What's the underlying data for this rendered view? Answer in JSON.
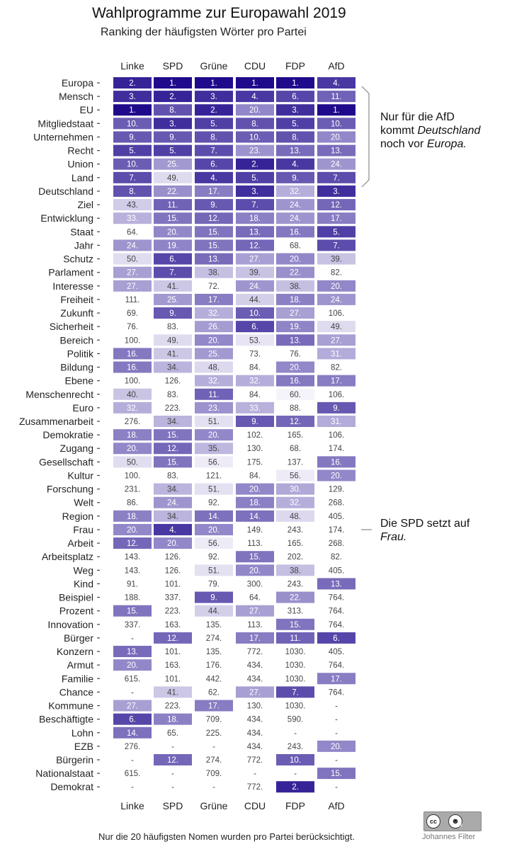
{
  "title": "Wahlprogramme zur Europawahl 2019",
  "subtitle": "Ranking der häufigsten Wörter pro Partei",
  "caption": "Nur die 20 häufigsten Nomen wurden pro Partei berücksichtigt.",
  "author": "Johannes Filter",
  "license": {
    "cc": "cc",
    "by": "BY"
  },
  "annotations": {
    "afd": {
      "line1": "Nur für die AfD",
      "line2_a": "kommt ",
      "line2_b": "Deutschland",
      "line3_a": "noch vor ",
      "line3_b": "Europa."
    },
    "spd": {
      "line1": "Die SPD setzt auf",
      "line2": "Frau."
    }
  },
  "colors": {
    "best": "#1f0a8c",
    "worst": "#f6f4fb",
    "text_light": "#ffffff",
    "text_dark": "#333333"
  },
  "chart_data": {
    "type": "heatmap",
    "title": "Wahlprogramme zur Europawahl 2019",
    "subtitle": "Ranking der häufigsten Wörter pro Partei",
    "x": [
      "Linke",
      "SPD",
      "Grüne",
      "CDU",
      "FDP",
      "AfD"
    ],
    "y": [
      "Europa",
      "Mensch",
      "EU",
      "Mitgliedstaat",
      "Unternehmen",
      "Recht",
      "Union",
      "Land",
      "Deutschland",
      "Ziel",
      "Entwicklung",
      "Staat",
      "Jahr",
      "Schutz",
      "Parlament",
      "Interesse",
      "Freiheit",
      "Zukunft",
      "Sicherheit",
      "Bereich",
      "Politik",
      "Bildung",
      "Ebene",
      "Menschenrecht",
      "Euro",
      "Zusammenarbeit",
      "Demokratie",
      "Zugang",
      "Gesellschaft",
      "Kultur",
      "Forschung",
      "Welt",
      "Region",
      "Frau",
      "Arbeit",
      "Arbeitsplatz",
      "Weg",
      "Kind",
      "Beispiel",
      "Prozent",
      "Innovation",
      "Bürger",
      "Konzern",
      "Armut",
      "Familie",
      "Chance",
      "Kommune",
      "Beschäftigte",
      "Lohn",
      "EZB",
      "Bürgerin",
      "Nationalstaat",
      "Demokrat"
    ],
    "values": [
      [
        2,
        1,
        1,
        1,
        1,
        4
      ],
      [
        3,
        2,
        3,
        4,
        6,
        11
      ],
      [
        1,
        8,
        2,
        20,
        3,
        1
      ],
      [
        10,
        3,
        5,
        8,
        5,
        10
      ],
      [
        9,
        9,
        8,
        10,
        8,
        20
      ],
      [
        5,
        5,
        7,
        23,
        13,
        13
      ],
      [
        10,
        25,
        6,
        2,
        4,
        24
      ],
      [
        7,
        49,
        4,
        5,
        9,
        7
      ],
      [
        8,
        22,
        17,
        3,
        32,
        3
      ],
      [
        43,
        11,
        9,
        7,
        24,
        12
      ],
      [
        33,
        15,
        12,
        18,
        24,
        17
      ],
      [
        64,
        20,
        15,
        13,
        16,
        5
      ],
      [
        24,
        19,
        15,
        12,
        68,
        7
      ],
      [
        50,
        6,
        13,
        27,
        20,
        39
      ],
      [
        27,
        7,
        38,
        39,
        22,
        82
      ],
      [
        27,
        41,
        72,
        24,
        38,
        20
      ],
      [
        111,
        25,
        17,
        44,
        18,
        24
      ],
      [
        69,
        9,
        32,
        10,
        27,
        106
      ],
      [
        76,
        83,
        26,
        6,
        19,
        49
      ],
      [
        100,
        49,
        20,
        53,
        13,
        27
      ],
      [
        16,
        41,
        25,
        73,
        76,
        31
      ],
      [
        16,
        34,
        48,
        84,
        20,
        82
      ],
      [
        100,
        126,
        32,
        32,
        16,
        17
      ],
      [
        40,
        83,
        11,
        84,
        60,
        106
      ],
      [
        32,
        223,
        23,
        33,
        88,
        9
      ],
      [
        276,
        34,
        51,
        9,
        12,
        31
      ],
      [
        18,
        15,
        20,
        102,
        165,
        106
      ],
      [
        20,
        12,
        35,
        130,
        68,
        174
      ],
      [
        50,
        15,
        56,
        175,
        137,
        16
      ],
      [
        100,
        83,
        121,
        84,
        56,
        20
      ],
      [
        231,
        34,
        51,
        20,
        30,
        129
      ],
      [
        86,
        24,
        92,
        18,
        32,
        268
      ],
      [
        18,
        34,
        14,
        14,
        48,
        405
      ],
      [
        20,
        4,
        20,
        149,
        243,
        174
      ],
      [
        12,
        20,
        56,
        113,
        165,
        268
      ],
      [
        143,
        126,
        92,
        15,
        202,
        82
      ],
      [
        143,
        126,
        51,
        20,
        38,
        405
      ],
      [
        91,
        101,
        79,
        300,
        243,
        13
      ],
      [
        188,
        337,
        9,
        64,
        22,
        764
      ],
      [
        15,
        223,
        44,
        27,
        313,
        764
      ],
      [
        337,
        163,
        135,
        113,
        15,
        764
      ],
      [
        null,
        12,
        274,
        17,
        11,
        6
      ],
      [
        13,
        101,
        135,
        772,
        1030,
        405
      ],
      [
        20,
        163,
        176,
        434,
        1030,
        764
      ],
      [
        615,
        101,
        442,
        434,
        1030,
        17
      ],
      [
        null,
        41,
        62,
        27,
        7,
        764
      ],
      [
        27,
        223,
        17,
        130,
        1030,
        null
      ],
      [
        6,
        18,
        709,
        434,
        590,
        null
      ],
      [
        14,
        65,
        225,
        434,
        null,
        null
      ],
      [
        276,
        null,
        null,
        434,
        243,
        20
      ],
      [
        null,
        12,
        274,
        772,
        10,
        null
      ],
      [
        615,
        null,
        709,
        null,
        null,
        15
      ],
      [
        null,
        null,
        null,
        772,
        2,
        null
      ]
    ],
    "missing_label": "-",
    "rank_suffix": ".",
    "color_scale": "rank 1 = darkest purple, higher ranks lighter; ranks beyond ~50 uncolored",
    "legend": "none"
  }
}
